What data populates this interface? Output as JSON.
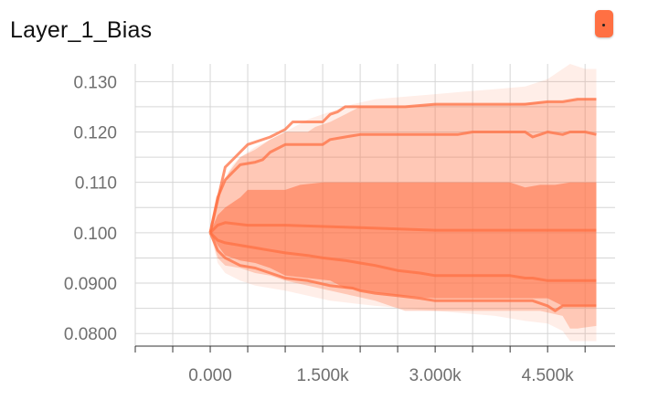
{
  "card": {
    "title": "Layer_1_Bias",
    "expand_button": {
      "icon": "fit-to-data-icon",
      "color": "#ff7043"
    }
  },
  "chart_data": {
    "type": "area",
    "title": "Layer_1_Bias",
    "xlabel": "",
    "ylabel": "",
    "xlim": [
      -1000,
      5400
    ],
    "ylim": [
      0.0775,
      0.1335
    ],
    "x_ticks": [
      0,
      1500,
      3000,
      4500
    ],
    "x_tick_labels": [
      "0.000",
      "1.500k",
      "3.000k",
      "4.500k"
    ],
    "y_ticks": [
      0.08,
      0.09,
      0.1,
      0.11,
      0.12,
      0.13
    ],
    "y_tick_labels": [
      "0.0800",
      "0.0900",
      "0.100",
      "0.110",
      "0.120",
      "0.130"
    ],
    "grid": true,
    "color": "#ff7043",
    "bands": [
      {
        "opacity": 0.12,
        "upper": [
          [
            0,
            0.1
          ],
          [
            100,
            0.107
          ],
          [
            200,
            0.111
          ],
          [
            300,
            0.1135
          ],
          [
            400,
            0.115
          ],
          [
            600,
            0.117
          ],
          [
            800,
            0.1185
          ],
          [
            1000,
            0.12
          ],
          [
            1300,
            0.1225
          ],
          [
            1600,
            0.124
          ],
          [
            1900,
            0.1255
          ],
          [
            2200,
            0.1265
          ],
          [
            2600,
            0.127
          ],
          [
            3000,
            0.1275
          ],
          [
            3400,
            0.128
          ],
          [
            3800,
            0.1285
          ],
          [
            4200,
            0.129
          ],
          [
            4500,
            0.1305
          ],
          [
            4700,
            0.1325
          ],
          [
            4800,
            0.1335
          ],
          [
            4900,
            0.133
          ],
          [
            5000,
            0.1325
          ],
          [
            5150,
            0.1325
          ]
        ],
        "lower": [
          [
            0,
            0.1
          ],
          [
            100,
            0.094
          ],
          [
            200,
            0.092
          ],
          [
            400,
            0.0905
          ],
          [
            600,
            0.0895
          ],
          [
            800,
            0.089
          ],
          [
            1000,
            0.0885
          ],
          [
            1300,
            0.0875
          ],
          [
            1600,
            0.0865
          ],
          [
            1900,
            0.086
          ],
          [
            2200,
            0.0855
          ],
          [
            2600,
            0.085
          ],
          [
            3000,
            0.0845
          ],
          [
            3400,
            0.084
          ],
          [
            3800,
            0.0835
          ],
          [
            4200,
            0.0825
          ],
          [
            4500,
            0.082
          ],
          [
            4700,
            0.0805
          ],
          [
            4800,
            0.0785
          ],
          [
            4900,
            0.0785
          ],
          [
            5000,
            0.0785
          ],
          [
            5150,
            0.0785
          ]
        ]
      },
      {
        "opacity": 0.3,
        "upper": [
          [
            0,
            0.1
          ],
          [
            150,
            0.109
          ],
          [
            250,
            0.112
          ],
          [
            400,
            0.115
          ],
          [
            600,
            0.1165
          ],
          [
            800,
            0.1185
          ],
          [
            1000,
            0.12
          ],
          [
            1300,
            0.12
          ],
          [
            1400,
            0.121
          ],
          [
            1600,
            0.122
          ],
          [
            1800,
            0.1235
          ],
          [
            2000,
            0.125
          ],
          [
            2600,
            0.125
          ],
          [
            3000,
            0.1255
          ],
          [
            4000,
            0.1255
          ],
          [
            4400,
            0.126
          ],
          [
            4700,
            0.126
          ],
          [
            4900,
            0.1265
          ],
          [
            5150,
            0.1265
          ]
        ],
        "lower": [
          [
            0,
            0.1
          ],
          [
            100,
            0.095
          ],
          [
            200,
            0.0935
          ],
          [
            400,
            0.093
          ],
          [
            600,
            0.092
          ],
          [
            800,
            0.0915
          ],
          [
            1000,
            0.0905
          ],
          [
            1300,
            0.0895
          ],
          [
            1600,
            0.0885
          ],
          [
            1900,
            0.0875
          ],
          [
            2200,
            0.0865
          ],
          [
            2400,
            0.0855
          ],
          [
            2600,
            0.0845
          ],
          [
            3000,
            0.0845
          ],
          [
            4000,
            0.0845
          ],
          [
            4400,
            0.0845
          ],
          [
            4700,
            0.0835
          ],
          [
            4800,
            0.081
          ],
          [
            4900,
            0.081
          ],
          [
            5150,
            0.0815
          ]
        ]
      },
      {
        "opacity": 0.55,
        "upper": [
          [
            0,
            0.1
          ],
          [
            100,
            0.1035
          ],
          [
            200,
            0.105
          ],
          [
            400,
            0.107
          ],
          [
            500,
            0.1085
          ],
          [
            1000,
            0.1085
          ],
          [
            1200,
            0.1095
          ],
          [
            1500,
            0.11
          ],
          [
            3000,
            0.11
          ],
          [
            4000,
            0.11
          ],
          [
            4200,
            0.109
          ],
          [
            4400,
            0.1095
          ],
          [
            4600,
            0.1095
          ],
          [
            4800,
            0.11
          ],
          [
            5150,
            0.11
          ]
        ],
        "lower": [
          [
            0,
            0.1
          ],
          [
            100,
            0.0975
          ],
          [
            200,
            0.0955
          ],
          [
            400,
            0.0945
          ],
          [
            600,
            0.094
          ],
          [
            800,
            0.093
          ],
          [
            1000,
            0.0915
          ],
          [
            1300,
            0.091
          ],
          [
            1600,
            0.0905
          ],
          [
            1800,
            0.089
          ],
          [
            2000,
            0.0885
          ],
          [
            2500,
            0.0875
          ],
          [
            3000,
            0.087
          ],
          [
            4000,
            0.087
          ],
          [
            4500,
            0.087
          ],
          [
            4700,
            0.0855
          ],
          [
            4850,
            0.0855
          ],
          [
            5150,
            0.0855
          ]
        ]
      }
    ],
    "series": [
      {
        "role": "upper-percentile",
        "values": [
          [
            0,
            0.1
          ],
          [
            200,
            0.113
          ],
          [
            400,
            0.116
          ],
          [
            500,
            0.1175
          ],
          [
            800,
            0.119
          ],
          [
            1000,
            0.1205
          ],
          [
            1100,
            0.122
          ],
          [
            1300,
            0.122
          ],
          [
            1500,
            0.122
          ],
          [
            1600,
            0.1235
          ],
          [
            1700,
            0.124
          ],
          [
            1800,
            0.125
          ],
          [
            2200,
            0.125
          ],
          [
            2600,
            0.125
          ],
          [
            3000,
            0.1255
          ],
          [
            3400,
            0.1255
          ],
          [
            3800,
            0.1255
          ],
          [
            4200,
            0.1255
          ],
          [
            4500,
            0.126
          ],
          [
            4700,
            0.126
          ],
          [
            4900,
            0.1265
          ],
          [
            5150,
            0.1265
          ]
        ]
      },
      {
        "role": "upper-quartile",
        "values": [
          [
            0,
            0.1
          ],
          [
            100,
            0.107
          ],
          [
            200,
            0.1105
          ],
          [
            300,
            0.112
          ],
          [
            400,
            0.1135
          ],
          [
            600,
            0.114
          ],
          [
            700,
            0.1145
          ],
          [
            800,
            0.116
          ],
          [
            1000,
            0.1175
          ],
          [
            1500,
            0.1175
          ],
          [
            1600,
            0.1185
          ],
          [
            1800,
            0.119
          ],
          [
            2000,
            0.1195
          ],
          [
            2600,
            0.1195
          ],
          [
            2800,
            0.1195
          ],
          [
            2900,
            0.1195
          ],
          [
            3000,
            0.1195
          ],
          [
            3300,
            0.1195
          ],
          [
            3500,
            0.12
          ],
          [
            3900,
            0.12
          ],
          [
            4000,
            0.12
          ],
          [
            4200,
            0.12
          ],
          [
            4300,
            0.119
          ],
          [
            4400,
            0.1195
          ],
          [
            4500,
            0.12
          ],
          [
            4700,
            0.1195
          ],
          [
            4800,
            0.12
          ],
          [
            5000,
            0.12
          ],
          [
            5150,
            0.1195
          ]
        ]
      },
      {
        "role": "median",
        "values": [
          [
            0,
            0.1
          ],
          [
            100,
            0.1015
          ],
          [
            200,
            0.102
          ],
          [
            500,
            0.1015
          ],
          [
            1000,
            0.1015
          ],
          [
            2000,
            0.101
          ],
          [
            3000,
            0.1005
          ],
          [
            4000,
            0.1005
          ],
          [
            5150,
            0.1005
          ]
        ]
      },
      {
        "role": "lower-quartile",
        "values": [
          [
            0,
            0.1
          ],
          [
            100,
            0.0985
          ],
          [
            200,
            0.098
          ],
          [
            400,
            0.0975
          ],
          [
            600,
            0.097
          ],
          [
            800,
            0.0965
          ],
          [
            1000,
            0.096
          ],
          [
            1300,
            0.0955
          ],
          [
            1500,
            0.095
          ],
          [
            1800,
            0.0945
          ],
          [
            2000,
            0.094
          ],
          [
            2200,
            0.0935
          ],
          [
            2500,
            0.0925
          ],
          [
            2800,
            0.092
          ],
          [
            3000,
            0.0915
          ],
          [
            3500,
            0.0915
          ],
          [
            3800,
            0.0915
          ],
          [
            4000,
            0.0915
          ],
          [
            4200,
            0.091
          ],
          [
            4300,
            0.091
          ],
          [
            4500,
            0.0905
          ],
          [
            4700,
            0.0905
          ],
          [
            5150,
            0.0905
          ]
        ]
      },
      {
        "role": "lower-percentile",
        "values": [
          [
            0,
            0.1
          ],
          [
            100,
            0.0965
          ],
          [
            200,
            0.095
          ],
          [
            400,
            0.0935
          ],
          [
            600,
            0.093
          ],
          [
            800,
            0.092
          ],
          [
            1000,
            0.091
          ],
          [
            1300,
            0.0905
          ],
          [
            1600,
            0.0895
          ],
          [
            1900,
            0.089
          ],
          [
            2000,
            0.0885
          ],
          [
            2200,
            0.088
          ],
          [
            2500,
            0.0875
          ],
          [
            2800,
            0.087
          ],
          [
            3000,
            0.0865
          ],
          [
            3500,
            0.0865
          ],
          [
            4000,
            0.0865
          ],
          [
            4300,
            0.0865
          ],
          [
            4500,
            0.0855
          ],
          [
            4600,
            0.0845
          ],
          [
            4700,
            0.0855
          ],
          [
            4900,
            0.0855
          ],
          [
            5150,
            0.0855
          ]
        ]
      }
    ]
  }
}
